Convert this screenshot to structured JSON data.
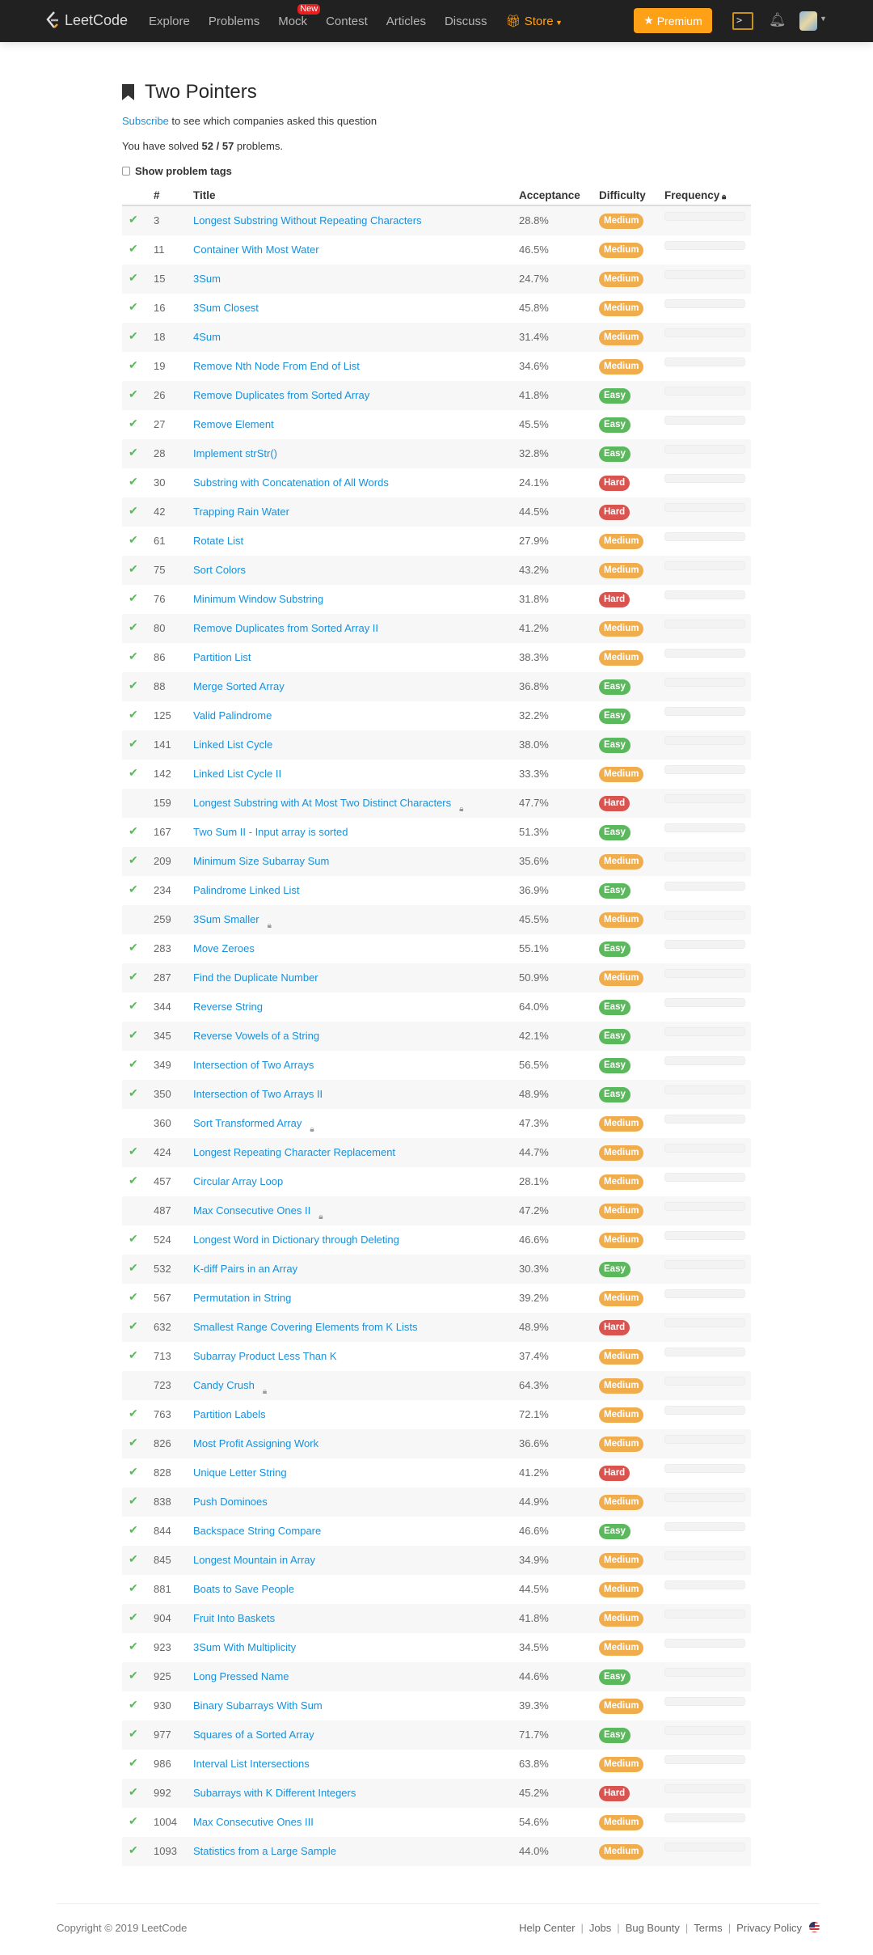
{
  "nav": {
    "brand": "LeetCode",
    "links": [
      "Explore",
      "Problems",
      "Mock",
      "Contest",
      "Articles",
      "Discuss"
    ],
    "new_badge": "New",
    "store": "Store",
    "premium": "Premium"
  },
  "page": {
    "title": "Two Pointers",
    "subscribe_link": "Subscribe",
    "subscribe_text": " to see which companies asked this question",
    "solved_prefix": "You have solved ",
    "solved_count": "52 / 57",
    "solved_suffix": " problems.",
    "show_tags": "Show problem tags"
  },
  "table": {
    "headers": {
      "num": "#",
      "title": "Title",
      "acceptance": "Acceptance",
      "difficulty": "Difficulty",
      "frequency": "Frequency"
    },
    "rows": [
      [
        true,
        "3",
        "Longest Substring Without Repeating Characters",
        "28.8%",
        "Medium",
        false
      ],
      [
        true,
        "11",
        "Container With Most Water",
        "46.5%",
        "Medium",
        false
      ],
      [
        true,
        "15",
        "3Sum",
        "24.7%",
        "Medium",
        false
      ],
      [
        true,
        "16",
        "3Sum Closest",
        "45.8%",
        "Medium",
        false
      ],
      [
        true,
        "18",
        "4Sum",
        "31.4%",
        "Medium",
        false
      ],
      [
        true,
        "19",
        "Remove Nth Node From End of List",
        "34.6%",
        "Medium",
        false
      ],
      [
        true,
        "26",
        "Remove Duplicates from Sorted Array",
        "41.8%",
        "Easy",
        false
      ],
      [
        true,
        "27",
        "Remove Element",
        "45.5%",
        "Easy",
        false
      ],
      [
        true,
        "28",
        "Implement strStr()",
        "32.8%",
        "Easy",
        false
      ],
      [
        true,
        "30",
        "Substring with Concatenation of All Words",
        "24.1%",
        "Hard",
        false
      ],
      [
        true,
        "42",
        "Trapping Rain Water",
        "44.5%",
        "Hard",
        false
      ],
      [
        true,
        "61",
        "Rotate List",
        "27.9%",
        "Medium",
        false
      ],
      [
        true,
        "75",
        "Sort Colors",
        "43.2%",
        "Medium",
        false
      ],
      [
        true,
        "76",
        "Minimum Window Substring",
        "31.8%",
        "Hard",
        false
      ],
      [
        true,
        "80",
        "Remove Duplicates from Sorted Array II",
        "41.2%",
        "Medium",
        false
      ],
      [
        true,
        "86",
        "Partition List",
        "38.3%",
        "Medium",
        false
      ],
      [
        true,
        "88",
        "Merge Sorted Array",
        "36.8%",
        "Easy",
        false
      ],
      [
        true,
        "125",
        "Valid Palindrome",
        "32.2%",
        "Easy",
        false
      ],
      [
        true,
        "141",
        "Linked List Cycle",
        "38.0%",
        "Easy",
        false
      ],
      [
        true,
        "142",
        "Linked List Cycle II",
        "33.3%",
        "Medium",
        false
      ],
      [
        false,
        "159",
        "Longest Substring with At Most Two Distinct Characters",
        "47.7%",
        "Hard",
        true
      ],
      [
        true,
        "167",
        "Two Sum II - Input array is sorted",
        "51.3%",
        "Easy",
        false
      ],
      [
        true,
        "209",
        "Minimum Size Subarray Sum",
        "35.6%",
        "Medium",
        false
      ],
      [
        true,
        "234",
        "Palindrome Linked List",
        "36.9%",
        "Easy",
        false
      ],
      [
        false,
        "259",
        "3Sum Smaller",
        "45.5%",
        "Medium",
        true
      ],
      [
        true,
        "283",
        "Move Zeroes",
        "55.1%",
        "Easy",
        false
      ],
      [
        true,
        "287",
        "Find the Duplicate Number",
        "50.9%",
        "Medium",
        false
      ],
      [
        true,
        "344",
        "Reverse String",
        "64.0%",
        "Easy",
        false
      ],
      [
        true,
        "345",
        "Reverse Vowels of a String",
        "42.1%",
        "Easy",
        false
      ],
      [
        true,
        "349",
        "Intersection of Two Arrays",
        "56.5%",
        "Easy",
        false
      ],
      [
        true,
        "350",
        "Intersection of Two Arrays II",
        "48.9%",
        "Easy",
        false
      ],
      [
        false,
        "360",
        "Sort Transformed Array",
        "47.3%",
        "Medium",
        true
      ],
      [
        true,
        "424",
        "Longest Repeating Character Replacement",
        "44.7%",
        "Medium",
        false
      ],
      [
        true,
        "457",
        "Circular Array Loop",
        "28.1%",
        "Medium",
        false
      ],
      [
        false,
        "487",
        "Max Consecutive Ones II",
        "47.2%",
        "Medium",
        true
      ],
      [
        true,
        "524",
        "Longest Word in Dictionary through Deleting",
        "46.6%",
        "Medium",
        false
      ],
      [
        true,
        "532",
        "K-diff Pairs in an Array",
        "30.3%",
        "Easy",
        false
      ],
      [
        true,
        "567",
        "Permutation in String",
        "39.2%",
        "Medium",
        false
      ],
      [
        true,
        "632",
        "Smallest Range Covering Elements from K Lists",
        "48.9%",
        "Hard",
        false
      ],
      [
        true,
        "713",
        "Subarray Product Less Than K",
        "37.4%",
        "Medium",
        false
      ],
      [
        false,
        "723",
        "Candy Crush",
        "64.3%",
        "Medium",
        true
      ],
      [
        true,
        "763",
        "Partition Labels",
        "72.1%",
        "Medium",
        false
      ],
      [
        true,
        "826",
        "Most Profit Assigning Work",
        "36.6%",
        "Medium",
        false
      ],
      [
        true,
        "828",
        "Unique Letter String",
        "41.2%",
        "Hard",
        false
      ],
      [
        true,
        "838",
        "Push Dominoes",
        "44.9%",
        "Medium",
        false
      ],
      [
        true,
        "844",
        "Backspace String Compare",
        "46.6%",
        "Easy",
        false
      ],
      [
        true,
        "845",
        "Longest Mountain in Array",
        "34.9%",
        "Medium",
        false
      ],
      [
        true,
        "881",
        "Boats to Save People",
        "44.5%",
        "Medium",
        false
      ],
      [
        true,
        "904",
        "Fruit Into Baskets",
        "41.8%",
        "Medium",
        false
      ],
      [
        true,
        "923",
        "3Sum With Multiplicity",
        "34.5%",
        "Medium",
        false
      ],
      [
        true,
        "925",
        "Long Pressed Name",
        "44.6%",
        "Easy",
        false
      ],
      [
        true,
        "930",
        "Binary Subarrays With Sum",
        "39.3%",
        "Medium",
        false
      ],
      [
        true,
        "977",
        "Squares of a Sorted Array",
        "71.7%",
        "Easy",
        false
      ],
      [
        true,
        "986",
        "Interval List Intersections",
        "63.8%",
        "Medium",
        false
      ],
      [
        true,
        "992",
        "Subarrays with K Different Integers",
        "45.2%",
        "Hard",
        false
      ],
      [
        true,
        "1004",
        "Max Consecutive Ones III",
        "54.6%",
        "Medium",
        false
      ],
      [
        true,
        "1093",
        "Statistics from a Large Sample",
        "44.0%",
        "Medium",
        false
      ]
    ]
  },
  "footer": {
    "copyright": "Copyright © 2019 LeetCode",
    "links": [
      "Help Center",
      "Jobs",
      "Bug Bounty",
      "Terms",
      "Privacy Policy"
    ]
  },
  "colors": {
    "accent": "#ffa116",
    "link": "#1a90d9",
    "easy": "#5cb85c",
    "medium": "#f0ad4e",
    "hard": "#d9534f"
  }
}
